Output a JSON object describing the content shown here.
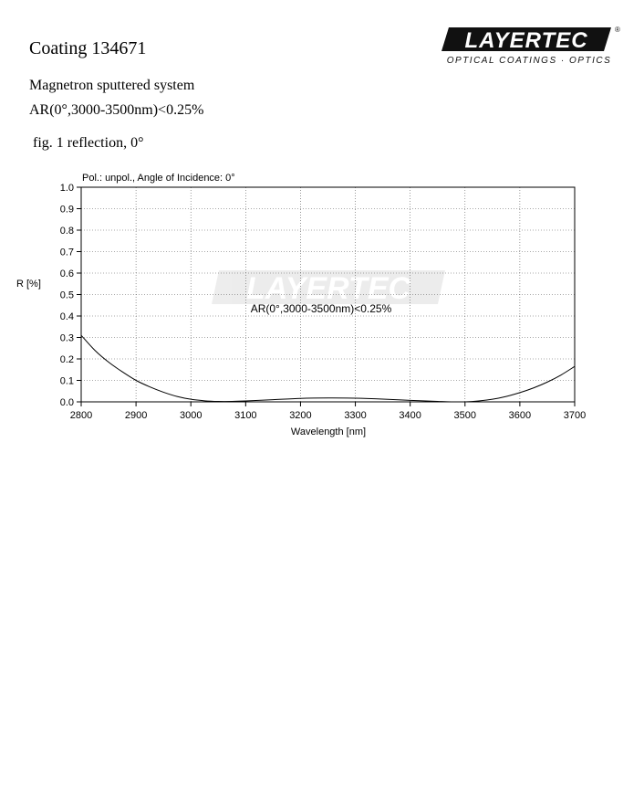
{
  "document": {
    "title": "Coating 134671",
    "description_line1": "Magnetron sputtered system",
    "description_line2": "AR(0°,3000-3500nm)<0.25%",
    "figure_caption": "fig. 1 reflection, 0°"
  },
  "logo": {
    "wordmark": "LAYERTEC",
    "tagline": "OPTICAL COATINGS · OPTICS",
    "registered_mark": "®"
  },
  "chart_data": {
    "type": "line",
    "subtitle": "Pol.: unpol., Angle of Incidence: 0°",
    "annotation": "AR(0°,3000-3500nm)<0.25%",
    "watermark": "LAYERTEC",
    "xlabel": "Wavelength [nm]",
    "ylabel": "R [%]",
    "xlim": [
      2800,
      3700
    ],
    "ylim": [
      0.0,
      1.0
    ],
    "xticks": [
      2800,
      2900,
      3000,
      3100,
      3200,
      3300,
      3400,
      3500,
      3600,
      3700
    ],
    "yticks": [
      "0.0",
      "0.1",
      "0.2",
      "0.3",
      "0.4",
      "0.5",
      "0.6",
      "0.7",
      "0.8",
      "0.9",
      "1.0"
    ],
    "grid": "dotted",
    "line_color": "#000000",
    "series": [
      {
        "x": [
          2800,
          2825,
          2850,
          2875,
          2900,
          2925,
          2950,
          2975,
          3000,
          3025,
          3050,
          3075,
          3100,
          3150,
          3200,
          3250,
          3300,
          3350,
          3400,
          3450,
          3475,
          3500,
          3525,
          3550,
          3575,
          3600,
          3625,
          3650,
          3675,
          3700
        ],
        "y": [
          0.31,
          0.24,
          0.185,
          0.14,
          0.1,
          0.07,
          0.045,
          0.025,
          0.012,
          0.005,
          0.002,
          0.002,
          0.004,
          0.01,
          0.016,
          0.018,
          0.017,
          0.013,
          0.007,
          0.002,
          0.0,
          0.0,
          0.004,
          0.012,
          0.025,
          0.043,
          0.065,
          0.092,
          0.125,
          0.165
        ]
      }
    ]
  }
}
